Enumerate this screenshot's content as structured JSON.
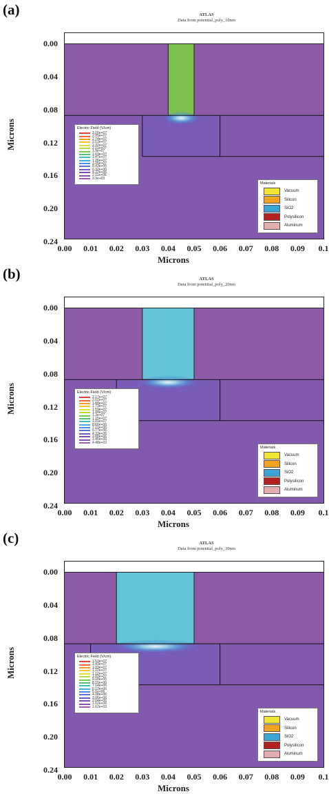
{
  "panels": [
    {
      "label": "(a)",
      "title": "ATLAS",
      "subtitle": "Data from potential_poly_10nm",
      "ylabel": "Microns",
      "xlabel": "Microns",
      "yticks": [
        "0.00",
        "0.04",
        "0.08",
        "0.12",
        "0.16",
        "0.20",
        "0.24"
      ],
      "xticks": [
        "0.00",
        "0.01",
        "0.02",
        "0.03",
        "0.04",
        "0.05",
        "0.06",
        "0.07",
        "0.08",
        "0.09",
        "0.1"
      ],
      "gate_x": [
        0.04,
        0.05
      ],
      "gate_color": "#7cc150",
      "field_legend_title": "Electric Field (V/cm)",
      "field_values": [
        "3.16e+07",
        "2.95e+07",
        "2.74e+07",
        "2.53e+07",
        "2.32e+07",
        "2.11e+07",
        "1.9e+07",
        "1.69e+07",
        "1.47e+07",
        "1.26e+07",
        "1.05e+07",
        "8.43e+06",
        "6.32e+06",
        "4.22e+06",
        "2.11e+06",
        "3.9e+03"
      ]
    },
    {
      "label": "(b)",
      "title": "ATLAS",
      "subtitle": "Data from potential_poly_20nm",
      "ylabel": "Microns",
      "xlabel": "Microns",
      "yticks": [
        "0.00",
        "0.04",
        "0.08",
        "0.12",
        "0.16",
        "0.20",
        "0.24"
      ],
      "xticks": [
        "0.00",
        "0.01",
        "0.02",
        "0.03",
        "0.04",
        "0.05",
        "0.06",
        "0.07",
        "0.08",
        "0.09",
        "0.1"
      ],
      "gate_x": [
        0.03,
        0.05
      ],
      "gate_color": "#62c4d6",
      "field_legend_title": "Electric Field (V/cm)",
      "field_values": [
        "2.17e+07",
        "2.02e+07",
        "1.88e+07",
        "1.73e+07",
        "1.59e+07",
        "1.44e+07",
        "1.3e+07",
        "1.15e+07",
        "1.01e+07",
        "8.66e+06",
        "7.21e+06",
        "5.77e+06",
        "4.33e+06",
        "2.88e+06",
        "1.45e+06",
        "4.48e+03"
      ]
    },
    {
      "label": "(c)",
      "title": "ATLAS",
      "subtitle": "Data from potential_poly_30nm",
      "ylabel": "Microns",
      "xlabel": "Microns",
      "yticks": [
        "0.00",
        "0.04",
        "0.08",
        "0.12",
        "0.16",
        "0.20",
        "0.24"
      ],
      "xticks": [
        "0.00",
        "0.01",
        "0.02",
        "0.03",
        "0.04",
        "0.05",
        "0.06",
        "0.07",
        "0.08",
        "0.09",
        "0.1"
      ],
      "gate_x": [
        0.02,
        0.05
      ],
      "gate_color": "#62c4d6",
      "field_legend_title": "Electric Field (V/cm)",
      "field_values": [
        "1.53e+07",
        "1.43e+07",
        "1.33e+07",
        "1.22e+07",
        "1.12e+07",
        "1.02e+07",
        "9.18e+06",
        "8.15e+06",
        "7.14e+06",
        "6.12e+06",
        "5.1e+06",
        "4.08e+06",
        "3.06e+06",
        "2.04e+06",
        "1.02e+06",
        "1.62e+03"
      ]
    }
  ],
  "materials": {
    "title": "Materials",
    "items": [
      {
        "name": "Vacuum",
        "color": "#f1e432"
      },
      {
        "name": "Silicon",
        "color": "#f2a41f"
      },
      {
        "name": "SiO2",
        "color": "#3aa6d6"
      },
      {
        "name": "Polysilicon",
        "color": "#b32020"
      },
      {
        "name": "Aluminum",
        "color": "#e4aeb0"
      }
    ]
  },
  "field_colors": [
    "#e0423c",
    "#f16a2f",
    "#f29a2d",
    "#f2c52f",
    "#e6e13a",
    "#b6dc3f",
    "#79c94a",
    "#4fbf7a",
    "#3fc0b8",
    "#41aee0",
    "#4a8ee2",
    "#5670d6",
    "#6a5cc6",
    "#7a4eb8",
    "#8c4db0",
    "#a05cb8"
  ],
  "chart_data": {
    "type": "heatmap",
    "panels": [
      {
        "label": "(a)",
        "subtitle": "Data from potential_poly_10nm",
        "gate_x": [
          0.04,
          0.05
        ],
        "field_max": "3.16e+07",
        "field_min": "3.9e+03"
      },
      {
        "label": "(b)",
        "subtitle": "Data from potential_poly_20nm",
        "gate_x": [
          0.03,
          0.05
        ],
        "field_max": "2.17e+07",
        "field_min": "4.48e+03"
      },
      {
        "label": "(c)",
        "subtitle": "Data from potential_poly_30nm",
        "gate_x": [
          0.02,
          0.05
        ],
        "field_max": "1.53e+07",
        "field_min": "1.62e+03"
      }
    ],
    "xlabel": "Microns",
    "ylabel": "Microns",
    "xlim": [
      0.0,
      0.1
    ],
    "ylim": [
      0.0,
      0.25
    ]
  }
}
